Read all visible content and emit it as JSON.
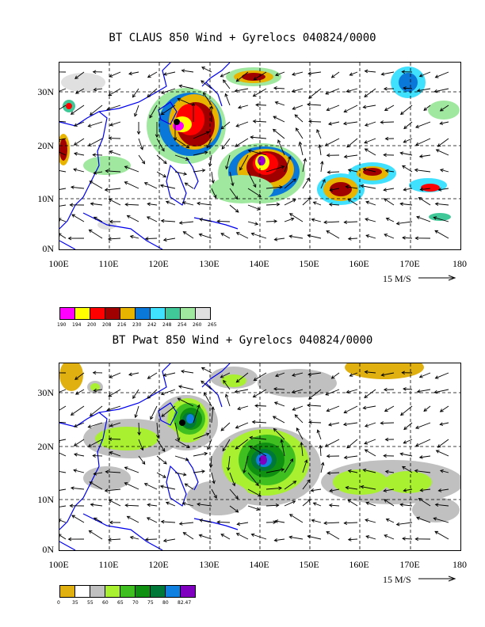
{
  "panel1": {
    "title": "BT CLAUS 850 Wind + Gyrelocs 040824/0000",
    "lat_labels": [
      "30N",
      "20N",
      "10N",
      "0N"
    ],
    "lon_labels": [
      "100E",
      "110E",
      "120E",
      "130E",
      "140E",
      "150E",
      "160E",
      "170E",
      "180"
    ],
    "scale_label": "15 M/S",
    "colorbar": {
      "colors": [
        "#ff00ff",
        "#ffff00",
        "#ff0000",
        "#a00000",
        "#e8b400",
        "#0a78d8",
        "#40e0ff",
        "#40c898",
        "#a0e8a0",
        "#e0e0e0"
      ],
      "labels": [
        "190",
        "194",
        "200",
        "208",
        "216",
        "230",
        "242",
        "248",
        "254",
        "260",
        "265"
      ]
    }
  },
  "panel2": {
    "title": "BT Pwat 850 Wind + Gyrelocs 040824/0000",
    "lat_labels": [
      "30N",
      "20N",
      "10N",
      "0N"
    ],
    "lon_labels": [
      "100E",
      "110E",
      "120E",
      "130E",
      "140E",
      "150E",
      "160E",
      "170E",
      "180"
    ],
    "scale_label": "15 M/S",
    "colorbar": {
      "colors": [
        "#e0b010",
        "#ffffff",
        "#c0c0c0",
        "#a8f030",
        "#40c020",
        "#109010",
        "#007838",
        "#1080e0",
        "#8000c0"
      ],
      "labels": [
        "0",
        "35",
        "55",
        "60",
        "65",
        "70",
        "75",
        "80",
        "82.47"
      ]
    }
  }
}
